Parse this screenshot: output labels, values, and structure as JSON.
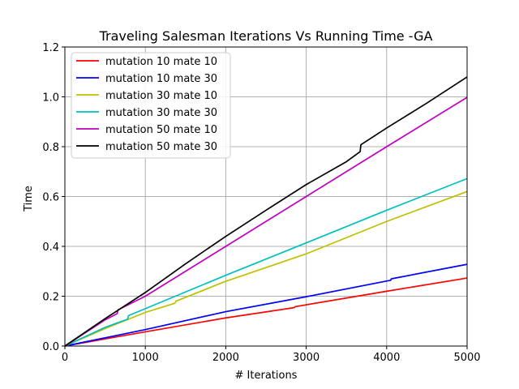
{
  "chart_data": {
    "type": "line",
    "title": "Traveling Salesman Iterations Vs Running Time -GA",
    "xlabel": "# Iterations",
    "ylabel": "Time",
    "xlim": [
      0,
      5000
    ],
    "ylim": [
      0,
      1.2
    ],
    "xticks": [
      "0",
      "1000",
      "2000",
      "3000",
      "4000",
      "5000"
    ],
    "yticks": [
      "0.0",
      "0.2",
      "0.4",
      "0.6",
      "0.8",
      "1.0",
      "1.2"
    ],
    "grid": true,
    "legend_position": "top-left",
    "series": [
      {
        "name": "mutation 10 mate 10",
        "color": "#ff0000",
        "x": [
          0,
          1000,
          2000,
          2850,
          2860,
          4000,
          5000
        ],
        "y": [
          0,
          0.057,
          0.113,
          0.154,
          0.158,
          0.22,
          0.273
        ]
      },
      {
        "name": "mutation 10 mate 30",
        "color": "#0000ff",
        "x": [
          0,
          1000,
          2000,
          3000,
          4050,
          4060,
          5000
        ],
        "y": [
          0,
          0.066,
          0.138,
          0.198,
          0.264,
          0.27,
          0.328
        ]
      },
      {
        "name": "mutation 30 mate 10",
        "color": "#bfbf00",
        "x": [
          0,
          500,
          1000,
          1370,
          1380,
          2000,
          2500,
          3000,
          4000,
          5000
        ],
        "y": [
          0,
          0.07,
          0.135,
          0.172,
          0.18,
          0.26,
          0.315,
          0.37,
          0.5,
          0.62
        ]
      },
      {
        "name": "mutation 30 mate 30",
        "color": "#00bfbf",
        "x": [
          0,
          500,
          780,
          790,
          1000,
          2000,
          3000,
          4000,
          5000
        ],
        "y": [
          0,
          0.075,
          0.108,
          0.122,
          0.15,
          0.284,
          0.414,
          0.545,
          0.672
        ]
      },
      {
        "name": "mutation 50 mate 10",
        "color": "#bf00bf",
        "x": [
          0,
          500,
          650,
          660,
          1000,
          2000,
          3000,
          4000,
          5000
        ],
        "y": [
          0,
          0.105,
          0.13,
          0.145,
          0.2,
          0.4,
          0.6,
          0.8,
          0.998
        ]
      },
      {
        "name": "mutation 50 mate 30",
        "color": "#000000",
        "x": [
          0,
          500,
          1000,
          1500,
          2000,
          2500,
          3000,
          3500,
          3670,
          3680,
          4000,
          4500,
          5000
        ],
        "y": [
          0,
          0.11,
          0.215,
          0.33,
          0.44,
          0.545,
          0.648,
          0.74,
          0.78,
          0.808,
          0.875,
          0.975,
          1.08
        ]
      }
    ]
  }
}
